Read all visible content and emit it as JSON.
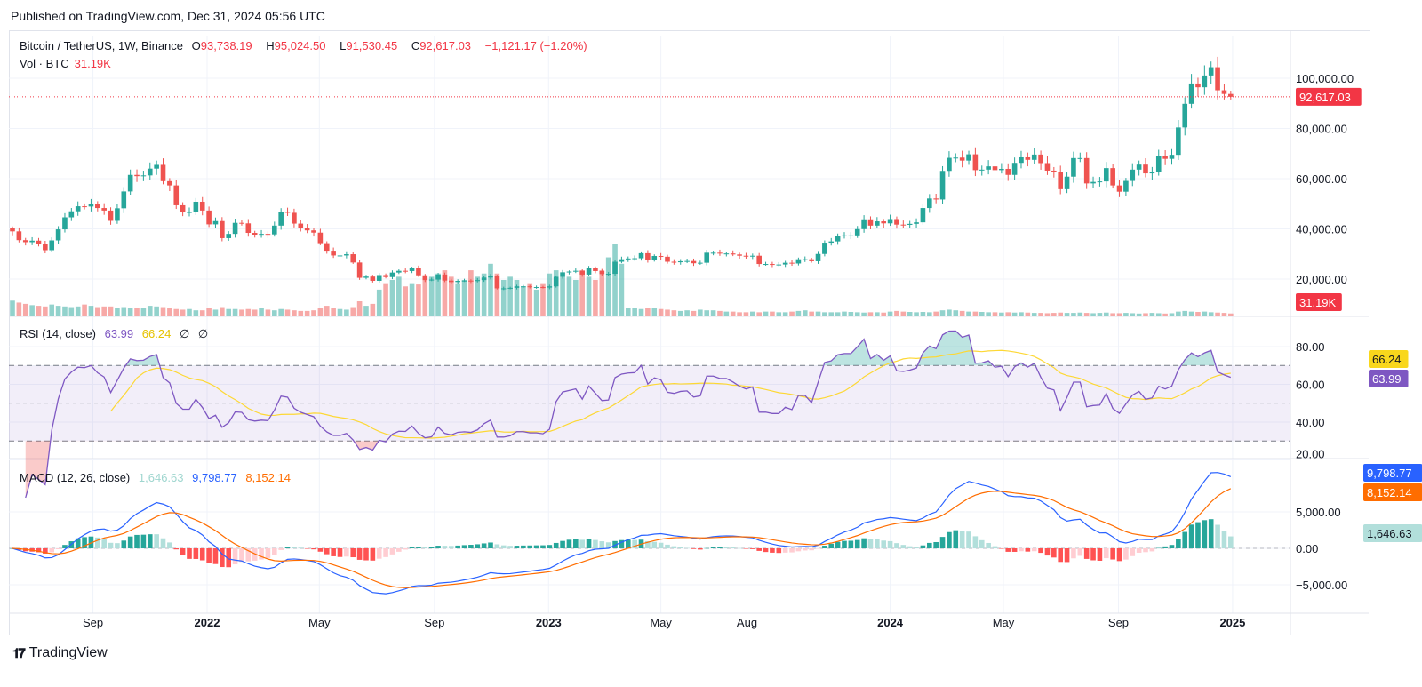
{
  "published": "Published on TradingView.com, Dec 31, 2024 05:56 UTC",
  "brand": "TradingView",
  "symbol": {
    "title": "Bitcoin / TetherUS, 1W, Binance",
    "o_label": "O",
    "o": "93,738.19",
    "h_label": "H",
    "h": "95,024.50",
    "l_label": "L",
    "l": "91,530.45",
    "c_label": "C",
    "c": "92,617.03",
    "change": "−1,121.17 (−1.20%)"
  },
  "vol_legend": {
    "label": "Vol · BTC",
    "value": "31.19K"
  },
  "rsi_legend": {
    "label": "RSI (14, close)",
    "rsi": "63.99",
    "ma": "66.24",
    "x1": "∅",
    "x2": "∅"
  },
  "macd_legend": {
    "label": "MACD (12, 26, close)",
    "hist": "1,646.63",
    "macd": "9,798.77",
    "signal": "8,152.14"
  },
  "colors": {
    "up": "#26a69a",
    "down": "#ef5350",
    "rsi": "#7e57c2",
    "rsi_ma": "#fdd835",
    "macd": "#2962ff",
    "signal": "#ff6d00",
    "hist_up": "#26a69a",
    "hist_up_fading": "#b2dfdb",
    "hist_down": "#ff5252",
    "hist_down_fading": "#ffcdd2"
  },
  "chart_data": [
    {
      "type": "candlestick",
      "interval": "1W",
      "first_week": "2021-06-07",
      "last_bar": {
        "open": 93738.19,
        "high": 95024.5,
        "low": 91530.45,
        "close": 92617.03
      },
      "close": [
        39000,
        35500,
        34700,
        35300,
        34000,
        31500,
        35400,
        39800,
        44600,
        47000,
        49000,
        48900,
        49900,
        48300,
        47300,
        43200,
        48200,
        54900,
        61500,
        61000,
        61300,
        64000,
        65500,
        59000,
        57300,
        49400,
        46700,
        46700,
        50800,
        47300,
        41800,
        43100,
        36300,
        38000,
        42400,
        42200,
        38400,
        37700,
        38000,
        37800,
        41300,
        46800,
        46400,
        42100,
        40400,
        39400,
        38500,
        34300,
        31300,
        29400,
        29400,
        29900,
        26600,
        20500,
        21000,
        19300,
        21600,
        20800,
        22600,
        23300,
        23200,
        24400,
        21500,
        19600,
        19800,
        21800,
        19400,
        18800,
        19300,
        19400,
        19200,
        19600,
        20600,
        21200,
        16300,
        16300,
        16500,
        17100,
        17100,
        16800,
        16800,
        16600,
        17100,
        20900,
        22700,
        23000,
        23300,
        21800,
        24300,
        23200,
        22000,
        22100,
        26900,
        27900,
        28200,
        28300,
        30300,
        27600,
        29200,
        28900,
        26900,
        26700,
        27100,
        27200,
        26300,
        26500,
        30500,
        30500,
        30200,
        30200,
        29800,
        29300,
        29000,
        29300,
        26000,
        26000,
        25800,
        25800,
        26500,
        26200,
        27900,
        27900,
        27100,
        30000,
        34500,
        35000,
        37000,
        37400,
        37400,
        39900,
        43800,
        41300,
        43000,
        42200,
        43900,
        41700,
        41600,
        42000,
        42600,
        48300,
        52100,
        51700,
        63100,
        68300,
        68400,
        67200,
        69700,
        63400,
        63600,
        64900,
        63400,
        63900,
        61500,
        66300,
        68500,
        67500,
        69600,
        66200,
        63200,
        62700,
        55800,
        60800,
        68200,
        68200,
        58100,
        58700,
        58900,
        64200,
        57300,
        54800,
        59100,
        63600,
        65600,
        62100,
        62800,
        69000,
        67900,
        69500,
        80400,
        89800,
        97900,
        96400,
        101100,
        104400,
        95200,
        93738.19,
        92617.03
      ],
      "volume_k": [
        230,
        200,
        180,
        160,
        150,
        140,
        170,
        150,
        140,
        130,
        140,
        170,
        150,
        130,
        140,
        140,
        120,
        130,
        110,
        110,
        120,
        150,
        140,
        130,
        110,
        100,
        90,
        100,
        80,
        80,
        110,
        90,
        130,
        100,
        100,
        90,
        100,
        90,
        110,
        90,
        80,
        100,
        90,
        80,
        70,
        70,
        80,
        110,
        150,
        110,
        100,
        90,
        130,
        220,
        150,
        180,
        400,
        500,
        550,
        600,
        450,
        500,
        480,
        550,
        600,
        650,
        700,
        600,
        500,
        550,
        700,
        600,
        650,
        800,
        650,
        550,
        600,
        550,
        450,
        500,
        400,
        500,
        650,
        700,
        600,
        600,
        550,
        700,
        600,
        550,
        700,
        900,
        1100,
        800,
        120,
        110,
        100,
        110,
        120,
        100,
        90,
        80,
        70,
        80,
        70,
        90,
        80,
        80,
        70,
        60,
        60,
        50,
        50,
        60,
        50,
        60,
        60,
        50,
        50,
        60,
        70,
        80,
        60,
        60,
        50,
        50,
        50,
        60,
        55,
        50,
        45,
        50,
        50,
        45,
        60,
        70,
        60,
        55,
        50,
        55,
        50,
        60,
        80,
        90,
        80,
        70,
        60,
        60,
        55,
        50,
        50,
        45,
        50,
        45,
        50,
        45,
        40,
        40,
        35,
        40,
        45,
        40,
        40,
        45,
        40,
        35,
        40,
        45,
        35,
        35,
        40,
        35,
        30,
        35,
        40,
        35,
        30,
        35,
        60,
        70,
        60,
        55,
        60,
        50,
        45,
        40,
        31.19
      ],
      "price_axis": {
        "ticks": [
          "20,000.00",
          "40,000.00",
          "60,000.00",
          "80,000.00",
          "100,000.00"
        ],
        "tick_values": [
          20000,
          40000,
          60000,
          80000,
          100000
        ],
        "last_label": "92,617.03",
        "vol_label": "31.19K"
      },
      "time_axis": [
        {
          "label": "Sep",
          "date": "2021-09-01"
        },
        {
          "label": "2022",
          "date": "2022-01-01"
        },
        {
          "label": "May",
          "date": "2022-05-01"
        },
        {
          "label": "Sep",
          "date": "2022-09-01"
        },
        {
          "label": "2023",
          "date": "2023-01-01"
        },
        {
          "label": "May",
          "date": "2023-05-01"
        },
        {
          "label": "Aug",
          "date": "2023-08-01"
        },
        {
          "label": "2024",
          "date": "2024-01-01"
        },
        {
          "label": "May",
          "date": "2024-05-01"
        },
        {
          "label": "Sep",
          "date": "2024-09-01"
        },
        {
          "label": "2025",
          "date": "2025-01-01"
        }
      ]
    },
    {
      "type": "line",
      "name": "RSI (14, close)",
      "ylim": [
        20,
        90
      ],
      "ticks": [
        "20.00",
        "40.00",
        "60.00",
        "80.00"
      ],
      "tick_values": [
        20,
        40,
        60,
        80
      ],
      "bands": [
        70,
        50,
        30
      ],
      "last": {
        "rsi": "63.99",
        "ma": "66.24"
      }
    },
    {
      "type": "line+bar",
      "name": "MACD (12, 26, close)",
      "ylim": [
        -8000,
        12000
      ],
      "ticks": [
        "−5,000.00",
        "0.00",
        "5,000.00"
      ],
      "tick_values": [
        -5000,
        0,
        5000
      ],
      "last": {
        "macd": "9,798.77",
        "signal": "8,152.14",
        "hist": "1,646.63"
      }
    }
  ]
}
